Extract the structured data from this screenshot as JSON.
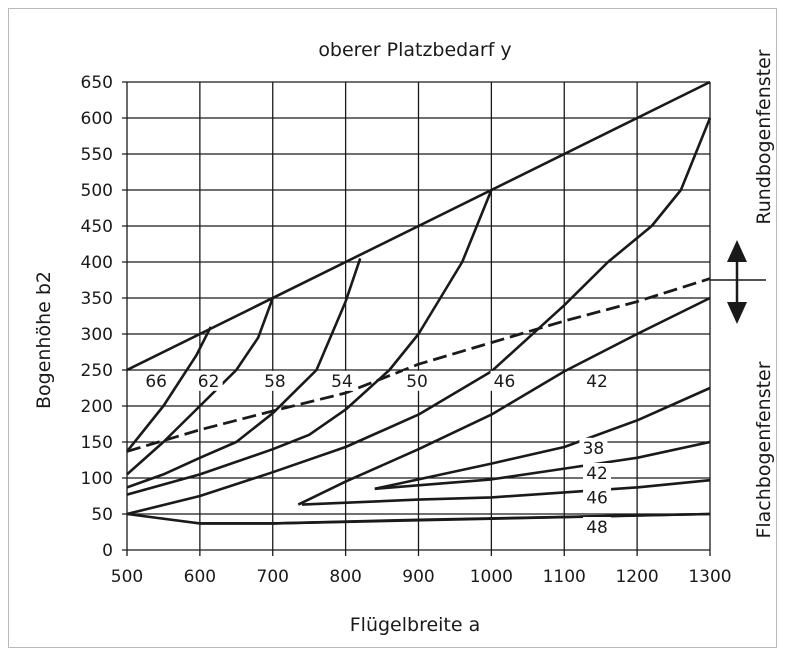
{
  "chart_data": {
    "type": "line",
    "title": "oberer Platzbedarf y",
    "xlabel": "Flügelbreite a",
    "ylabel": "Bogenhöhe b2",
    "xlim": [
      500,
      1300
    ],
    "ylim": [
      0,
      650
    ],
    "x_ticks": [
      500,
      600,
      700,
      800,
      900,
      1000,
      1100,
      1200,
      1300
    ],
    "y_ticks": [
      0,
      50,
      100,
      150,
      200,
      250,
      300,
      350,
      400,
      450,
      500,
      550,
      600,
      650
    ],
    "grid": true,
    "side_labels": {
      "upper": "Rundbogenfenster",
      "lower": "Flachbogenfenster"
    },
    "boundaries": [
      {
        "id": "upper-boundary",
        "style": "solid",
        "points": [
          [
            500,
            250
          ],
          [
            1300,
            650
          ]
        ]
      },
      {
        "id": "lower-boundary",
        "style": "solid",
        "points": [
          [
            500,
            50
          ],
          [
            600,
            37
          ],
          [
            700,
            37
          ],
          [
            1300,
            50
          ]
        ]
      },
      {
        "id": "transition-line",
        "style": "dashed",
        "points": [
          [
            500,
            137
          ],
          [
            600,
            167
          ],
          [
            700,
            193
          ],
          [
            800,
            218
          ],
          [
            900,
            258
          ],
          [
            1000,
            288
          ],
          [
            1100,
            318
          ],
          [
            1200,
            345
          ],
          [
            1300,
            377
          ]
        ]
      }
    ],
    "series": [
      {
        "name": "66",
        "label_at": [
          540,
          228
        ],
        "points": [
          [
            500,
            137
          ],
          [
            550,
            200
          ],
          [
            595,
            270
          ],
          [
            615,
            310
          ]
        ]
      },
      {
        "name": "62",
        "label_at": [
          612,
          228
        ],
        "points": [
          [
            500,
            105
          ],
          [
            550,
            150
          ],
          [
            600,
            200
          ],
          [
            650,
            250
          ],
          [
            680,
            295
          ],
          [
            700,
            350
          ]
        ]
      },
      {
        "name": "58",
        "label_at": [
          703,
          228
        ],
        "points": [
          [
            500,
            87
          ],
          [
            550,
            105
          ],
          [
            600,
            128
          ],
          [
            650,
            150
          ],
          [
            700,
            190
          ],
          [
            760,
            250
          ],
          [
            800,
            345
          ],
          [
            820,
            405
          ]
        ]
      },
      {
        "name": "54",
        "label_at": [
          795,
          228
        ],
        "points": [
          [
            500,
            77
          ],
          [
            600,
            105
          ],
          [
            700,
            140
          ],
          [
            750,
            160
          ],
          [
            800,
            195
          ],
          [
            860,
            250
          ],
          [
            900,
            300
          ],
          [
            960,
            400
          ],
          [
            1000,
            500
          ]
        ]
      },
      {
        "name": "50",
        "label_at": [
          898,
          228
        ],
        "points": [
          [
            500,
            50
          ],
          [
            600,
            75
          ],
          [
            700,
            108
          ],
          [
            800,
            143
          ],
          [
            900,
            188
          ],
          [
            1000,
            248
          ],
          [
            1100,
            340
          ],
          [
            1160,
            400
          ],
          [
            1220,
            450
          ],
          [
            1260,
            500
          ],
          [
            1300,
            600
          ]
        ]
      },
      {
        "name": "46",
        "label_at": [
          1018,
          228
        ],
        "points": [
          [
            735,
            63
          ],
          [
            800,
            95
          ],
          [
            900,
            140
          ],
          [
            1000,
            188
          ],
          [
            1100,
            248
          ],
          [
            1200,
            300
          ],
          [
            1300,
            350
          ]
        ]
      },
      {
        "name": "42",
        "label_at": [
          1145,
          228
        ],
        "points": [
          [
            840,
            85
          ],
          [
            900,
            98
          ],
          [
            1000,
            120
          ],
          [
            1100,
            143
          ],
          [
            1200,
            180
          ],
          [
            1300,
            225
          ]
        ]
      },
      {
        "name": "38",
        "label_at": [
          1140,
          135
        ],
        "points": [
          [
            840,
            85
          ],
          [
            1000,
            98
          ],
          [
            1100,
            113
          ],
          [
            1200,
            128
          ],
          [
            1300,
            150
          ]
        ]
      },
      {
        "name": "42",
        "label_at": [
          1145,
          100
        ],
        "points": [
          [
            740,
            63
          ],
          [
            900,
            70
          ],
          [
            1000,
            73
          ],
          [
            1100,
            80
          ],
          [
            1200,
            87
          ],
          [
            1300,
            97
          ]
        ]
      },
      {
        "name": "46",
        "label_at": [
          1145,
          66
        ],
        "points": [
          [
            600,
            37
          ],
          [
            700,
            37
          ],
          [
            900,
            42
          ],
          [
            1100,
            46
          ],
          [
            1300,
            50
          ]
        ]
      },
      {
        "name": "48",
        "label_at": [
          1145,
          25
        ],
        "points": []
      }
    ]
  }
}
